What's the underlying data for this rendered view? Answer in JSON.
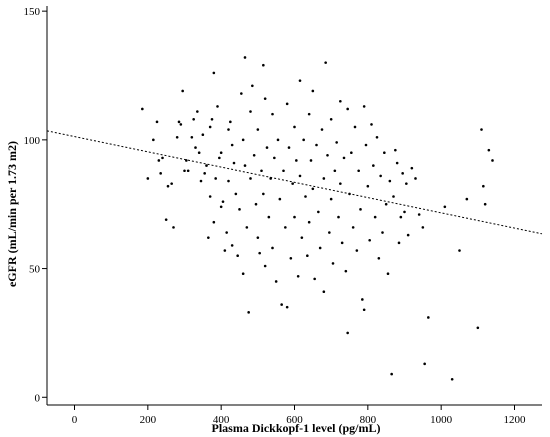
{
  "chart_data": {
    "type": "scatter",
    "xlabel": "Plasma Dickkopf-1 level (pg/mL)",
    "ylabel": "eGFR (mL/min per 1.73 m2)",
    "xlim": [
      -75,
      1275
    ],
    "ylim": [
      -3,
      152
    ],
    "xticks": [
      0,
      200,
      400,
      600,
      800,
      1000,
      1200
    ],
    "yticks": [
      0,
      50,
      100,
      150
    ],
    "grid": false,
    "legend": "none",
    "trendline": {
      "style": "dotted",
      "x": [
        -75,
        1275
      ],
      "y": [
        103.5,
        63.5
      ]
    },
    "points": [
      [
        185,
        112
      ],
      [
        200,
        85
      ],
      [
        215,
        100
      ],
      [
        225,
        107
      ],
      [
        230,
        92
      ],
      [
        235,
        87
      ],
      [
        240,
        93
      ],
      [
        250,
        69
      ],
      [
        255,
        82
      ],
      [
        265,
        83
      ],
      [
        270,
        66
      ],
      [
        280,
        101
      ],
      [
        285,
        107
      ],
      [
        290,
        106
      ],
      [
        295,
        119
      ],
      [
        300,
        88
      ],
      [
        305,
        92
      ],
      [
        310,
        88
      ],
      [
        320,
        101
      ],
      [
        325,
        108
      ],
      [
        330,
        97
      ],
      [
        335,
        111
      ],
      [
        340,
        95
      ],
      [
        345,
        84
      ],
      [
        350,
        102
      ],
      [
        355,
        87
      ],
      [
        360,
        90
      ],
      [
        365,
        62
      ],
      [
        370,
        105
      ],
      [
        370,
        78
      ],
      [
        375,
        108
      ],
      [
        380,
        126
      ],
      [
        380,
        68
      ],
      [
        385,
        85
      ],
      [
        390,
        113
      ],
      [
        395,
        93
      ],
      [
        400,
        95
      ],
      [
        400,
        74
      ],
      [
        405,
        76
      ],
      [
        410,
        57
      ],
      [
        415,
        64
      ],
      [
        420,
        104
      ],
      [
        420,
        84
      ],
      [
        425,
        107
      ],
      [
        430,
        98
      ],
      [
        430,
        59
      ],
      [
        435,
        91
      ],
      [
        440,
        79
      ],
      [
        445,
        55
      ],
      [
        450,
        73
      ],
      [
        455,
        118
      ],
      [
        460,
        100
      ],
      [
        460,
        48
      ],
      [
        465,
        132
      ],
      [
        465,
        90
      ],
      [
        470,
        66
      ],
      [
        475,
        33
      ],
      [
        480,
        111
      ],
      [
        480,
        85
      ],
      [
        485,
        121
      ],
      [
        490,
        94
      ],
      [
        495,
        75
      ],
      [
        500,
        104
      ],
      [
        500,
        62
      ],
      [
        505,
        56
      ],
      [
        510,
        88
      ],
      [
        515,
        129
      ],
      [
        515,
        79
      ],
      [
        520,
        116
      ],
      [
        520,
        51
      ],
      [
        525,
        97
      ],
      [
        530,
        70
      ],
      [
        535,
        85
      ],
      [
        540,
        110
      ],
      [
        540,
        58
      ],
      [
        545,
        93
      ],
      [
        550,
        45
      ],
      [
        555,
        100
      ],
      [
        560,
        77
      ],
      [
        565,
        36
      ],
      [
        570,
        88
      ],
      [
        575,
        66
      ],
      [
        580,
        114
      ],
      [
        580,
        35
      ],
      [
        585,
        97
      ],
      [
        590,
        54
      ],
      [
        595,
        83
      ],
      [
        600,
        105
      ],
      [
        600,
        70
      ],
      [
        605,
        92
      ],
      [
        610,
        47
      ],
      [
        615,
        123
      ],
      [
        615,
        86
      ],
      [
        620,
        62
      ],
      [
        625,
        100
      ],
      [
        630,
        78
      ],
      [
        635,
        55
      ],
      [
        640,
        110
      ],
      [
        640,
        68
      ],
      [
        645,
        92
      ],
      [
        650,
        119
      ],
      [
        650,
        81
      ],
      [
        655,
        46
      ],
      [
        660,
        98
      ],
      [
        665,
        72
      ],
      [
        670,
        58
      ],
      [
        675,
        104
      ],
      [
        680,
        85
      ],
      [
        680,
        41
      ],
      [
        685,
        130
      ],
      [
        690,
        94
      ],
      [
        695,
        64
      ],
      [
        700,
        108
      ],
      [
        700,
        77
      ],
      [
        705,
        52
      ],
      [
        710,
        88
      ],
      [
        715,
        99
      ],
      [
        720,
        70
      ],
      [
        725,
        115
      ],
      [
        725,
        83
      ],
      [
        730,
        60
      ],
      [
        735,
        93
      ],
      [
        740,
        49
      ],
      [
        745,
        112
      ],
      [
        745,
        25
      ],
      [
        750,
        79
      ],
      [
        755,
        95
      ],
      [
        760,
        66
      ],
      [
        765,
        105
      ],
      [
        770,
        57
      ],
      [
        775,
        88
      ],
      [
        780,
        73
      ],
      [
        785,
        38
      ],
      [
        790,
        113
      ],
      [
        790,
        34
      ],
      [
        795,
        98
      ],
      [
        800,
        82
      ],
      [
        805,
        61
      ],
      [
        810,
        106
      ],
      [
        815,
        90
      ],
      [
        820,
        70
      ],
      [
        825,
        101
      ],
      [
        830,
        54
      ],
      [
        835,
        86
      ],
      [
        840,
        64
      ],
      [
        845,
        95
      ],
      [
        850,
        75
      ],
      [
        855,
        48
      ],
      [
        860,
        84
      ],
      [
        865,
        9
      ],
      [
        870,
        78
      ],
      [
        875,
        96
      ],
      [
        880,
        91
      ],
      [
        885,
        60
      ],
      [
        890,
        70
      ],
      [
        895,
        87
      ],
      [
        900,
        72
      ],
      [
        905,
        83
      ],
      [
        910,
        63
      ],
      [
        920,
        89
      ],
      [
        930,
        85
      ],
      [
        940,
        71
      ],
      [
        950,
        66
      ],
      [
        955,
        13
      ],
      [
        965,
        31
      ],
      [
        1010,
        74
      ],
      [
        1030,
        7
      ],
      [
        1050,
        57
      ],
      [
        1070,
        77
      ],
      [
        1100,
        27
      ],
      [
        1110,
        104
      ],
      [
        1115,
        82
      ],
      [
        1120,
        75
      ],
      [
        1130,
        96
      ],
      [
        1140,
        92
      ]
    ]
  }
}
